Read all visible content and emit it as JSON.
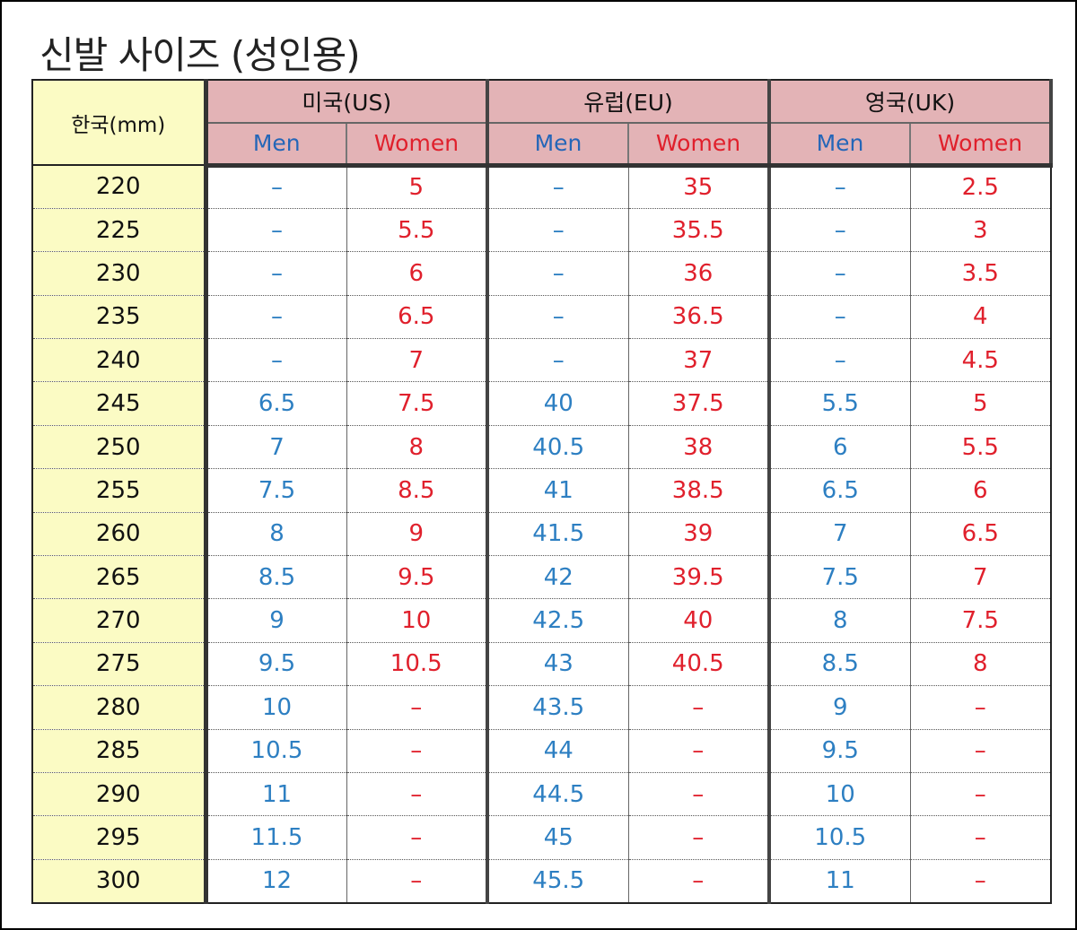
{
  "title": "신발 사이즈 (성인용)",
  "colors": {
    "korea_bg": "#fbfbc4",
    "header_bg": "#e3b3b6",
    "men_color": "#2d7fc2",
    "women_color": "#e0202c"
  },
  "table": {
    "korea_header": "한국(mm)",
    "groups": [
      "미국(US)",
      "유럽(EU)",
      "영국(UK)"
    ],
    "sub_headers": [
      "Men",
      "Women",
      "Men",
      "Women",
      "Men",
      "Women"
    ],
    "rows": [
      [
        "220",
        "–",
        "5",
        "–",
        "35",
        "–",
        "2.5"
      ],
      [
        "225",
        "–",
        "5.5",
        "–",
        "35.5",
        "–",
        "3"
      ],
      [
        "230",
        "–",
        "6",
        "–",
        "36",
        "–",
        "3.5"
      ],
      [
        "235",
        "–",
        "6.5",
        "–",
        "36.5",
        "–",
        "4"
      ],
      [
        "240",
        "–",
        "7",
        "–",
        "37",
        "–",
        "4.5"
      ],
      [
        "245",
        "6.5",
        "7.5",
        "40",
        "37.5",
        "5.5",
        "5"
      ],
      [
        "250",
        "7",
        "8",
        "40.5",
        "38",
        "6",
        "5.5"
      ],
      [
        "255",
        "7.5",
        "8.5",
        "41",
        "38.5",
        "6.5",
        "6"
      ],
      [
        "260",
        "8",
        "9",
        "41.5",
        "39",
        "7",
        "6.5"
      ],
      [
        "265",
        "8.5",
        "9.5",
        "42",
        "39.5",
        "7.5",
        "7"
      ],
      [
        "270",
        "9",
        "10",
        "42.5",
        "40",
        "8",
        "7.5"
      ],
      [
        "275",
        "9.5",
        "10.5",
        "43",
        "40.5",
        "8.5",
        "8"
      ],
      [
        "280",
        "10",
        "–",
        "43.5",
        "–",
        "9",
        "–"
      ],
      [
        "285",
        "10.5",
        "–",
        "44",
        "–",
        "9.5",
        "–"
      ],
      [
        "290",
        "11",
        "–",
        "44.5",
        "–",
        "10",
        "–"
      ],
      [
        "295",
        "11.5",
        "–",
        "45",
        "–",
        "10.5",
        "–"
      ],
      [
        "300",
        "12",
        "–",
        "45.5",
        "–",
        "11",
        "–"
      ]
    ]
  }
}
